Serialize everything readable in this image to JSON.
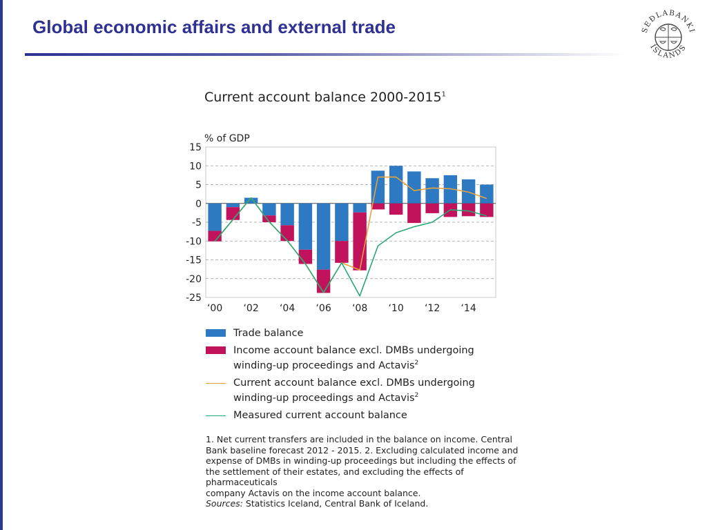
{
  "slide": {
    "title": "Global economic affairs and external trade"
  },
  "logo": {
    "text_top": "SEÐLABANKI",
    "text_bottom": "ÍSLANDS",
    "icon": "central-bank-seal"
  },
  "chart_data": {
    "type": "bar",
    "title": "Current account balance 2000-2015",
    "title_footnote": "1",
    "ylabel": "% of GDP",
    "ylim": [
      -25,
      15
    ],
    "yticks": [
      15,
      10,
      5,
      0,
      -5,
      -10,
      -15,
      -20,
      -25
    ],
    "x": [
      2000,
      2001,
      2002,
      2003,
      2004,
      2005,
      2006,
      2007,
      2008,
      2009,
      2010,
      2011,
      2012,
      2013,
      2014,
      2015
    ],
    "xtick_labels": [
      "‘00",
      "‘02",
      "‘04",
      "‘06",
      "‘08",
      "‘10",
      "‘12",
      "‘14"
    ],
    "grid": "horizontal dashed",
    "stacked": true,
    "series": [
      {
        "name": "Trade balance",
        "kind": "bar",
        "color": "#2e7ac2",
        "values": [
          -7.3,
          -1.0,
          1.5,
          -3.2,
          -5.8,
          -12.3,
          -17.6,
          -10.0,
          -2.4,
          8.7,
          10.0,
          8.5,
          6.7,
          7.5,
          6.4,
          5.0
        ]
      },
      {
        "name": "Income account balance excl. DMBs undergoing winding-up proceedings and Actavis",
        "kind": "bar",
        "color": "#c0135b",
        "values": [
          -2.8,
          -3.4,
          0.0,
          -1.8,
          -4.2,
          -3.8,
          -6.2,
          -5.8,
          -15.4,
          -1.6,
          -3.0,
          -5.2,
          -2.6,
          -3.6,
          -3.4,
          -3.6
        ]
      },
      {
        "name": "Current account balance excl. DMBs undergoing winding-up proceedings and Actavis",
        "kind": "line",
        "color": "#e8a33a",
        "values": [
          -10.1,
          -4.3,
          1.5,
          -4.9,
          -9.9,
          -16.1,
          -23.7,
          -15.8,
          -17.7,
          7.0,
          7.0,
          3.4,
          4.1,
          3.9,
          3.0,
          1.3
        ]
      },
      {
        "name": "Measured current account balance",
        "kind": "line",
        "color": "#2aa876",
        "values": [
          -10.1,
          -4.3,
          1.5,
          -4.9,
          -9.9,
          -16.1,
          -23.7,
          -15.8,
          -24.6,
          -11.3,
          -7.8,
          -6.2,
          -5.0,
          -1.7,
          -2.0,
          -3.3
        ]
      }
    ]
  },
  "legend": {
    "trade": "Trade balance",
    "income_1": "Income account balance excl. DMBs undergoing",
    "income_2": "winding-up proceedings and Actavis",
    "income_sup": "2",
    "current_1": "Current account balance excl. DMBs undergoing",
    "current_2": "winding-up proceedings and Actavis",
    "current_sup": "2",
    "measured": "Measured current account balance"
  },
  "footnote": {
    "line1": "1. Net current transfers are included in the balance on income. Central",
    "line2": "Bank baseline forecast 2012 - 2015. 2. Excluding calculated income and",
    "line3": "expense of DMBs in winding-up proceedings but including the effects of",
    "line4": "the settlement of their estates, and excluding the effects of pharmaceuticals",
    "line5": "company Actavis on the income account balance.",
    "sources_label": "Sources:",
    "sources_text": " Statistics Iceland, Central Bank of Iceland."
  }
}
